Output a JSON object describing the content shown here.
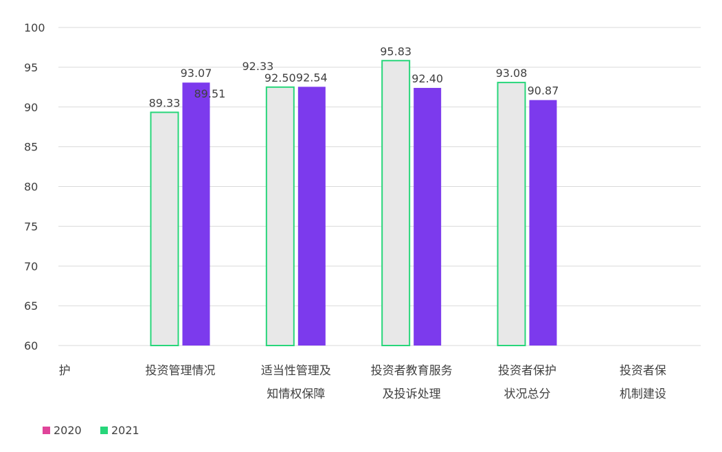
{
  "chart_data": {
    "type": "bar",
    "title": "",
    "xlabel": "",
    "ylabel": "",
    "ylim": [
      60,
      100
    ],
    "yticks": [
      60,
      65,
      70,
      75,
      80,
      85,
      90,
      95,
      100
    ],
    "grid": true,
    "legend_position": "bottom-left",
    "categories": [
      "护",
      "投资管理情况",
      "适当性管理及知情权保障",
      "投资者教育服务及投诉处理",
      "投资者保护状况总分",
      "投资者保护机制建设"
    ],
    "category_lines": [
      [
        "护",
        ""
      ],
      [
        "投资管理情况",
        ""
      ],
      [
        "适当性管理及",
        "知情权保障"
      ],
      [
        "投资者教育服务",
        "及投诉处理"
      ],
      [
        "投资者保护",
        "状况总分"
      ],
      [
        "投资者保",
        "机制建设"
      ]
    ],
    "series": [
      {
        "name": "2020",
        "values": [
          null,
          89.33,
          92.5,
          95.83,
          93.08,
          null
        ]
      },
      {
        "name": "2021",
        "values": [
          null,
          93.07,
          92.54,
          92.4,
          90.87,
          null
        ]
      }
    ],
    "extra_labels": [
      "89.51",
      "92.33"
    ],
    "colors": {
      "series_2020": "#e0449a",
      "series_2021": "#27d67a",
      "bar_2020": "#e8e8e8",
      "bar_2021": "#7c3aed",
      "highlight": "#5b9bd5",
      "grid": "#d9d9d9",
      "text": "#404040"
    }
  }
}
